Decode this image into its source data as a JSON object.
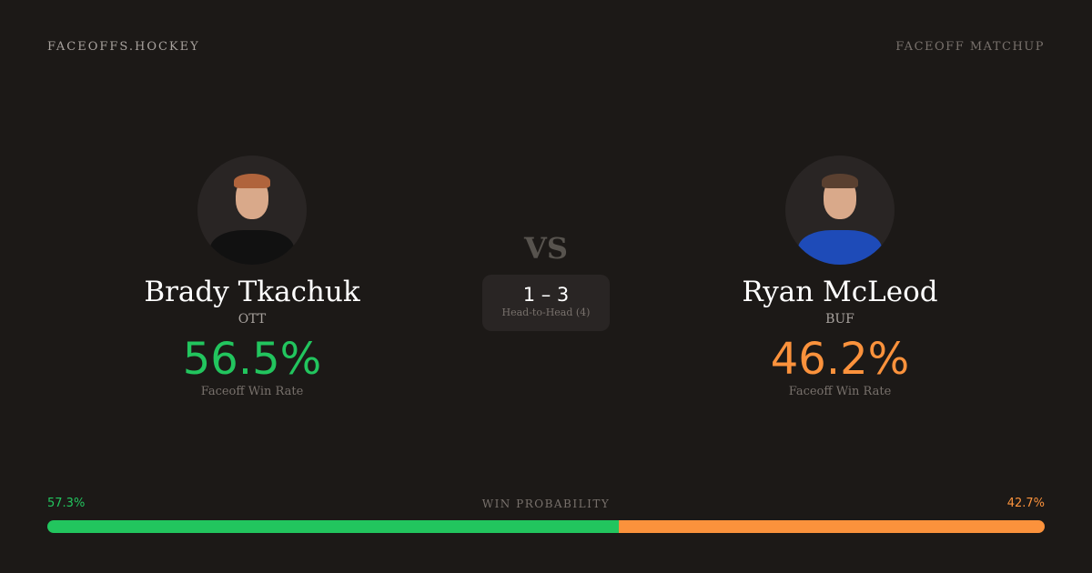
{
  "header": {
    "brand": "FACEOFFS.HOCKEY",
    "tag": "FACEOFF MATCHUP"
  },
  "colors": {
    "left": "#22c55e",
    "right": "#fb923c"
  },
  "players": [
    {
      "name": "Brady Tkachuk",
      "team": "OTT",
      "win_rate": "56.5%",
      "win_rate_label": "Faceoff Win Rate",
      "jersey": "#111111",
      "hair": "#b0643c"
    },
    {
      "name": "Ryan McLeod",
      "team": "BUF",
      "win_rate": "46.2%",
      "win_rate_label": "Faceoff Win Rate",
      "jersey": "#1e4bb8",
      "hair": "#5a4030"
    }
  ],
  "vs": "VS",
  "head_to_head": {
    "score": "1 – 3",
    "label": "Head-to-Head (4)"
  },
  "win_probability": {
    "label": "WIN PROBABILITY",
    "left": "57.3%",
    "right": "42.7%",
    "left_pct": 57.3,
    "right_pct": 42.7
  }
}
